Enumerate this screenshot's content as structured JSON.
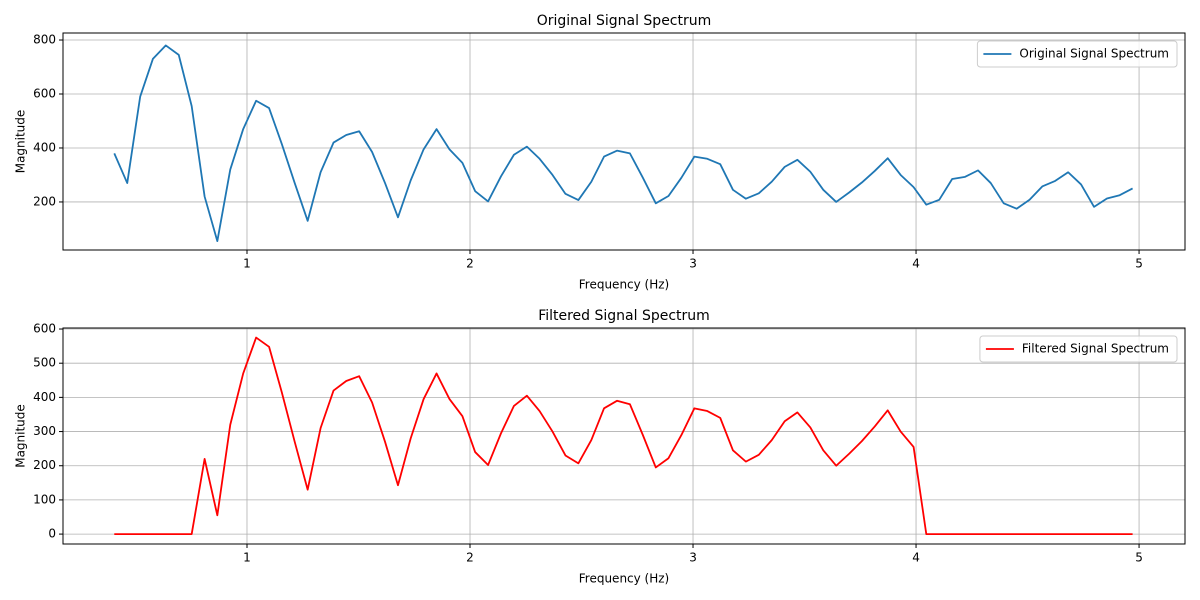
{
  "chart_data": [
    {
      "type": "line",
      "title": "Original Signal Spectrum",
      "xlabel": "Frequency (Hz)",
      "ylabel": "Magnitude",
      "x": [
        0.405,
        0.463,
        0.521,
        0.578,
        0.636,
        0.694,
        0.752,
        0.81,
        0.867,
        0.925,
        0.983,
        1.041,
        1.099,
        1.156,
        1.214,
        1.272,
        1.33,
        1.388,
        1.445,
        1.503,
        1.561,
        1.619,
        1.677,
        1.734,
        1.792,
        1.85,
        1.908,
        1.966,
        2.023,
        2.081,
        2.139,
        2.197,
        2.255,
        2.312,
        2.37,
        2.428,
        2.486,
        2.544,
        2.601,
        2.659,
        2.717,
        2.775,
        2.833,
        2.89,
        2.948,
        3.006,
        3.064,
        3.122,
        3.179,
        3.237,
        3.295,
        3.353,
        3.411,
        3.468,
        3.526,
        3.584,
        3.642,
        3.7,
        3.757,
        3.815,
        3.873,
        3.931,
        3.989,
        4.046,
        4.104,
        4.162,
        4.22,
        4.278,
        4.335,
        4.393,
        4.451,
        4.509,
        4.567,
        4.624,
        4.682,
        4.74,
        4.798,
        4.856,
        4.913,
        4.971
      ],
      "series": [
        {
          "name": "Original Signal Spectrum",
          "color": "#1f77b4",
          "values": [
            380,
            270,
            590,
            730,
            780,
            745,
            555,
            220,
            55,
            320,
            470,
            575,
            548,
            415,
            270,
            130,
            310,
            420,
            448,
            462,
            385,
            270,
            143,
            280,
            395,
            470,
            395,
            345,
            240,
            202,
            295,
            375,
            405,
            360,
            300,
            230,
            207,
            275,
            368,
            390,
            380,
            290,
            195,
            222,
            290,
            368,
            360,
            340,
            245,
            212,
            232,
            275,
            330,
            356,
            312,
            245,
            200,
            235,
            272,
            315,
            362,
            300,
            255,
            190,
            208,
            285,
            293,
            317,
            270,
            195,
            175,
            208,
            258,
            278,
            310,
            265,
            182,
            213,
            225,
            250
          ]
        }
      ],
      "xlim": [
        0.175,
        5.206
      ],
      "xticks": [
        1,
        2,
        3,
        4,
        5
      ],
      "ylim": [
        22,
        826
      ],
      "yticks": [
        200,
        400,
        600,
        800
      ],
      "grid": true,
      "legend": "upper-right"
    },
    {
      "type": "line",
      "title": "Filtered Signal Spectrum",
      "xlabel": "Frequency (Hz)",
      "ylabel": "Magnitude",
      "x": [
        0.405,
        0.463,
        0.521,
        0.578,
        0.636,
        0.694,
        0.752,
        0.81,
        0.867,
        0.925,
        0.983,
        1.041,
        1.099,
        1.156,
        1.214,
        1.272,
        1.33,
        1.388,
        1.445,
        1.503,
        1.561,
        1.619,
        1.677,
        1.734,
        1.792,
        1.85,
        1.908,
        1.966,
        2.023,
        2.081,
        2.139,
        2.197,
        2.255,
        2.312,
        2.37,
        2.428,
        2.486,
        2.544,
        2.601,
        2.659,
        2.717,
        2.775,
        2.833,
        2.89,
        2.948,
        3.006,
        3.064,
        3.122,
        3.179,
        3.237,
        3.295,
        3.353,
        3.411,
        3.468,
        3.526,
        3.584,
        3.642,
        3.7,
        3.757,
        3.815,
        3.873,
        3.931,
        3.989,
        4.046,
        4.104,
        4.162,
        4.22,
        4.278,
        4.335,
        4.393,
        4.451,
        4.509,
        4.567,
        4.624,
        4.682,
        4.74,
        4.798,
        4.856,
        4.913,
        4.971
      ],
      "series": [
        {
          "name": "Filtered Signal Spectrum",
          "color": "#ff0000",
          "values": [
            0,
            0,
            0,
            0,
            0,
            0,
            0,
            220,
            55,
            320,
            470,
            575,
            548,
            415,
            270,
            130,
            310,
            420,
            448,
            462,
            385,
            270,
            143,
            280,
            395,
            470,
            395,
            345,
            240,
            202,
            295,
            375,
            405,
            360,
            300,
            230,
            207,
            275,
            368,
            390,
            380,
            290,
            195,
            222,
            290,
            368,
            360,
            340,
            245,
            212,
            232,
            275,
            330,
            356,
            312,
            245,
            200,
            235,
            272,
            315,
            362,
            300,
            255,
            0,
            0,
            0,
            0,
            0,
            0,
            0,
            0,
            0,
            0,
            0,
            0,
            0,
            0,
            0,
            0,
            0
          ]
        }
      ],
      "xlim": [
        0.175,
        5.206
      ],
      "xticks": [
        1,
        2,
        3,
        4,
        5
      ],
      "ylim": [
        -29,
        603
      ],
      "yticks": [
        0,
        100,
        200,
        300,
        400,
        500,
        600
      ],
      "grid": true,
      "legend": "upper-right"
    }
  ]
}
